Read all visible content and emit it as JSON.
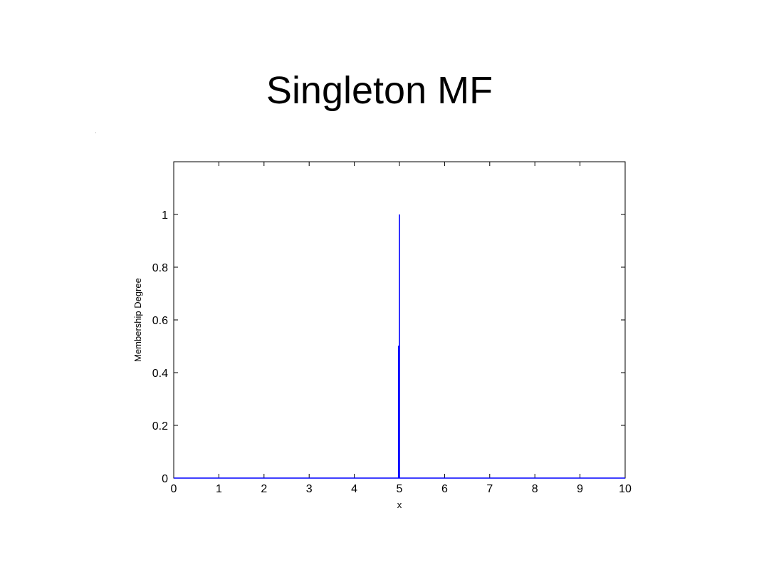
{
  "slide": {
    "title": "Singleton MF"
  },
  "chart_data": {
    "type": "line",
    "title": "",
    "xlabel": "x",
    "ylabel": "Membership Degree",
    "xlim": [
      0,
      10
    ],
    "ylim": [
      0,
      1.2
    ],
    "x_ticks": [
      0,
      1,
      2,
      3,
      4,
      5,
      6,
      7,
      8,
      9,
      10
    ],
    "y_ticks": [
      0,
      0.2,
      0.4,
      0.6,
      0.8,
      1
    ],
    "x_tick_labels": [
      "0",
      "1",
      "2",
      "3",
      "4",
      "5",
      "6",
      "7",
      "8",
      "9",
      "10"
    ],
    "y_tick_labels": [
      "0",
      "0.2",
      "0.4",
      "0.6",
      "0.8",
      "1"
    ],
    "grid": false,
    "legend": "none",
    "series": [
      {
        "color": "#0000ff",
        "x": [
          0,
          4.98,
          4.98,
          5.0,
          5.0,
          5.0,
          5.0,
          10
        ],
        "y": [
          0,
          0,
          0.5,
          0.5,
          1,
          1,
          0,
          0
        ]
      }
    ]
  }
}
